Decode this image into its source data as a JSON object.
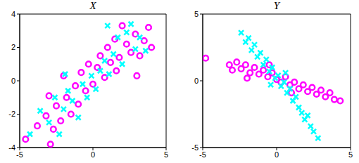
{
  "chart_data": [
    {
      "type": "scatter",
      "title": "X",
      "xlim": [
        -5,
        5
      ],
      "ylim": [
        -4,
        4
      ],
      "xticks": [
        -5,
        0,
        5
      ],
      "yticks": [
        -4,
        -2,
        0,
        2,
        4
      ],
      "grid": false,
      "series": [
        {
          "color": "#ff00ff",
          "marker": "circle",
          "x": [
            -4.6,
            -3.8,
            -3.2,
            -2.9,
            -2.5,
            -2.2,
            -2.0,
            -1.8,
            -1.5,
            -1.2,
            -1.0,
            -0.8,
            -0.5,
            -0.3,
            0.0,
            0.3,
            0.5,
            0.8,
            1.0,
            1.2,
            1.5,
            1.8,
            2.0,
            2.3,
            2.6,
            2.9,
            3.2,
            3.5,
            3.8,
            4.0,
            -3.0,
            -2.7,
            1.6,
            3.0
          ],
          "y": [
            -3.5,
            -2.7,
            -2.1,
            -3.8,
            -1.5,
            -2.4,
            0.3,
            -1.0,
            -2.0,
            -0.3,
            -1.4,
            0.5,
            -0.6,
            1.0,
            -0.2,
            0.8,
            1.5,
            0.2,
            2.0,
            1.1,
            2.5,
            1.4,
            3.3,
            2.2,
            1.7,
            2.8,
            1.5,
            2.4,
            3.2,
            2.0,
            -0.9,
            -2.9,
            0.6,
            0.3
          ]
        },
        {
          "color": "#00ffff",
          "marker": "cross",
          "x": [
            -4.3,
            -3.6,
            -3.0,
            -2.6,
            -2.3,
            -2.0,
            -1.7,
            -1.4,
            -1.0,
            -0.7,
            -0.4,
            -0.1,
            0.2,
            0.5,
            0.8,
            1.1,
            1.4,
            1.7,
            2.0,
            2.3,
            2.6,
            2.9,
            3.2,
            3.6,
            -1.9,
            1.0
          ],
          "y": [
            -3.2,
            -1.8,
            -2.5,
            -1.0,
            -3.2,
            -1.7,
            -0.6,
            -1.2,
            -2.2,
            -0.2,
            -1.0,
            0.3,
            -0.5,
            0.6,
            1.2,
            0.4,
            1.6,
            2.6,
            1.0,
            2.9,
            3.4,
            1.9,
            2.6,
            1.8,
            0.4,
            3.3
          ]
        }
      ]
    },
    {
      "type": "scatter",
      "title": "Y",
      "xlim": [
        -5,
        5
      ],
      "ylim": [
        -5,
        5
      ],
      "xticks": [
        -5,
        0,
        5
      ],
      "yticks": [
        -5,
        0,
        5
      ],
      "grid": false,
      "series": [
        {
          "color": "#ff00ff",
          "marker": "circle",
          "x": [
            -4.8,
            -3.2,
            -3.0,
            -2.7,
            -2.4,
            -2.1,
            -1.8,
            -1.5,
            -1.2,
            -0.9,
            -0.6,
            -0.3,
            0.0,
            0.3,
            0.6,
            0.9,
            1.2,
            1.5,
            1.8,
            2.1,
            2.4,
            2.7,
            3.0,
            3.3,
            3.6,
            3.9,
            4.3,
            -2.0,
            1.0,
            -0.5
          ],
          "y": [
            1.7,
            1.2,
            0.8,
            1.4,
            0.9,
            1.2,
            0.6,
            1.0,
            0.5,
            0.8,
            0.3,
            0.6,
            0.1,
            -0.1,
            0.3,
            -0.3,
            -0.1,
            -0.6,
            -0.3,
            -0.8,
            -0.5,
            -1.0,
            -0.7,
            -1.2,
            -0.9,
            -1.4,
            -1.5,
            0.2,
            -0.9,
            1.2
          ]
        },
        {
          "color": "#00ffff",
          "marker": "cross",
          "x": [
            -2.4,
            -2.1,
            -1.9,
            -1.7,
            -1.5,
            -1.3,
            -1.1,
            -0.9,
            -0.7,
            -0.5,
            -0.3,
            -0.1,
            0.1,
            0.3,
            0.5,
            0.7,
            0.9,
            1.1,
            1.3,
            1.5,
            1.7,
            1.9,
            2.1,
            2.3,
            2.5,
            2.8,
            -0.4,
            0.6
          ],
          "y": [
            3.6,
            2.9,
            3.2,
            2.3,
            2.7,
            1.8,
            2.1,
            1.2,
            1.6,
            0.7,
            1.0,
            0.2,
            0.4,
            -0.4,
            -0.1,
            -0.9,
            -0.6,
            -1.5,
            -1.2,
            -2.0,
            -2.4,
            -2.9,
            -2.6,
            -3.4,
            -3.8,
            -4.3,
            -0.3,
            0.6
          ]
        }
      ]
    }
  ]
}
